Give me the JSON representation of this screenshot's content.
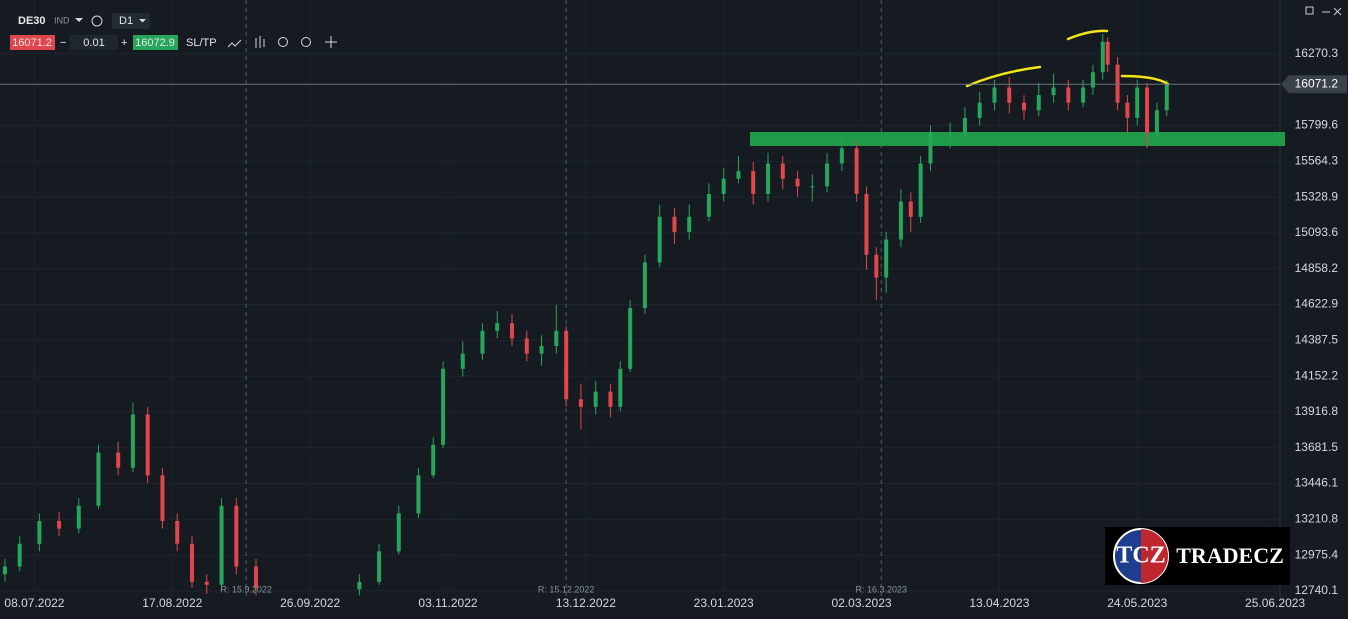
{
  "toolbar": {
    "symbol": "DE30",
    "market": "IND",
    "interval": "D1",
    "bid": "16071.2",
    "volume": "0.01",
    "ask": "16072.9",
    "sltp": "SL/TP"
  },
  "logo": {
    "badge": "TCZ",
    "text": "TRADECZ"
  },
  "chart_data": {
    "type": "candlestick",
    "x": [
      1,
      4,
      8,
      12,
      16,
      20,
      24,
      27,
      30,
      33,
      36,
      39,
      42,
      45,
      48,
      52,
      73,
      77,
      81,
      85,
      88,
      90,
      94,
      98,
      101,
      104,
      107,
      110,
      113,
      115,
      118,
      121,
      124,
      126,
      128,
      131,
      134,
      137,
      140,
      144,
      147,
      150,
      153,
      156,
      159,
      162,
      165,
      168,
      171,
      174,
      176,
      178,
      180,
      183,
      185,
      187,
      189,
      193,
      196,
      199,
      202,
      205,
      208,
      211,
      214,
      217,
      220,
      222,
      224,
      225,
      227,
      229,
      231,
      233,
      235,
      237
    ],
    "open": [
      12850,
      12900,
      13050,
      13200,
      13150,
      13300,
      13650,
      13550,
      13900,
      13500,
      13200,
      13050,
      12800,
      12780,
      13300,
      12900,
      12750,
      12800,
      13000,
      13250,
      13500,
      13700,
      14200,
      14300,
      14450,
      14500,
      14400,
      14300,
      14350,
      14450,
      14000,
      13950,
      14050,
      13950,
      14200,
      14600,
      14900,
      15200,
      15100,
      15200,
      15350,
      15450,
      15500,
      15350,
      15550,
      15450,
      15400,
      15400,
      15550,
      15650,
      15350,
      14950,
      14800,
      15050,
      15300,
      15200,
      15550,
      15750,
      15750,
      15850,
      15950,
      16050,
      15950,
      15900,
      16000,
      16050,
      15950,
      16050,
      16150,
      16350,
      16200,
      15950,
      15850,
      16050,
      15750,
      15900
    ],
    "high": [
      12950,
      13100,
      13250,
      13260,
      13350,
      13700,
      13720,
      13980,
      13950,
      13550,
      13250,
      13100,
      12850,
      13350,
      13350,
      12950,
      12850,
      13050,
      13300,
      13550,
      13750,
      14250,
      14380,
      14500,
      14580,
      14560,
      14450,
      14420,
      14620,
      14480,
      14100,
      14120,
      14100,
      14250,
      14650,
      14950,
      15280,
      15260,
      15280,
      15420,
      15520,
      15600,
      15560,
      15620,
      15600,
      15500,
      15480,
      15620,
      15720,
      15700,
      15400,
      15000,
      15100,
      15380,
      15360,
      15600,
      15800,
      15820,
      15920,
      16020,
      16100,
      16120,
      16000,
      16080,
      16140,
      16100,
      16100,
      16200,
      16400,
      16380,
      16250,
      16000,
      16100,
      16080,
      15950,
      16100
    ],
    "low": [
      12800,
      12870,
      13000,
      13100,
      13120,
      13280,
      13500,
      13520,
      13450,
      13150,
      13000,
      12760,
      12720,
      12750,
      12850,
      12710,
      12710,
      12780,
      12980,
      13220,
      13480,
      13680,
      14150,
      14260,
      14400,
      14350,
      14250,
      14220,
      14300,
      13950,
      13800,
      13900,
      13880,
      13920,
      14180,
      14560,
      14870,
      15020,
      15050,
      15170,
      15300,
      15420,
      15280,
      15300,
      15380,
      15330,
      15300,
      15360,
      15500,
      15300,
      14850,
      14650,
      14700,
      15000,
      15100,
      15160,
      15500,
      15650,
      15720,
      15800,
      15900,
      15880,
      15840,
      15860,
      15950,
      15900,
      15920,
      16000,
      16100,
      16150,
      15900,
      15750,
      15800,
      15650,
      15700,
      15860
    ],
    "close": [
      12900,
      13050,
      13200,
      13150,
      13300,
      13650,
      13550,
      13900,
      13500,
      13200,
      13050,
      12800,
      12780,
      13300,
      12900,
      12760,
      12800,
      13000,
      13250,
      13500,
      13700,
      14200,
      14300,
      14450,
      14500,
      14400,
      14300,
      14350,
      14450,
      14000,
      13950,
      14050,
      13950,
      14200,
      14600,
      14900,
      15200,
      15100,
      15200,
      15350,
      15450,
      15500,
      15350,
      15550,
      15450,
      15400,
      15400,
      15550,
      15650,
      15350,
      14950,
      14800,
      15050,
      15300,
      15200,
      15550,
      15750,
      15750,
      15850,
      15950,
      16050,
      15950,
      15900,
      16000,
      16050,
      15950,
      16050,
      16150,
      16350,
      16200,
      15950,
      15850,
      16050,
      15750,
      15900,
      16071
    ],
    "up_color": "#26a65b",
    "down_color": "#e0474c",
    "xlim": [
      0,
      260
    ],
    "xticks": [
      {
        "value": 7,
        "label": "08.07.2022"
      },
      {
        "value": 35,
        "label": "17.08.2022"
      },
      {
        "value": 63,
        "label": "26.09.2022"
      },
      {
        "value": 91,
        "label": "03.11.2022"
      },
      {
        "value": 119,
        "label": "13.12.2022"
      },
      {
        "value": 147,
        "label": "23.01.2023"
      },
      {
        "value": 175,
        "label": "02.03.2023"
      },
      {
        "value": 203,
        "label": "13.04.2023"
      },
      {
        "value": 231,
        "label": "24.05.2023"
      },
      {
        "value": 259,
        "label": "25.06.2023"
      }
    ],
    "ylim": [
      12700,
      16625
    ],
    "yticks": [
      16270.3,
      15799.6,
      15564.3,
      15328.9,
      15093.6,
      14858.2,
      14622.9,
      14387.5,
      14152.2,
      13916.8,
      13681.5,
      13446.1,
      13210.8,
      12975.4,
      12740.1
    ],
    "current_price": 16071.2,
    "markers": [
      {
        "x": 50,
        "label": "R: 15.9.2022"
      },
      {
        "x": 115,
        "label": "R: 15.12.2022"
      },
      {
        "x": 179,
        "label": "R: 16.3.2023"
      }
    ],
    "grid": true
  }
}
